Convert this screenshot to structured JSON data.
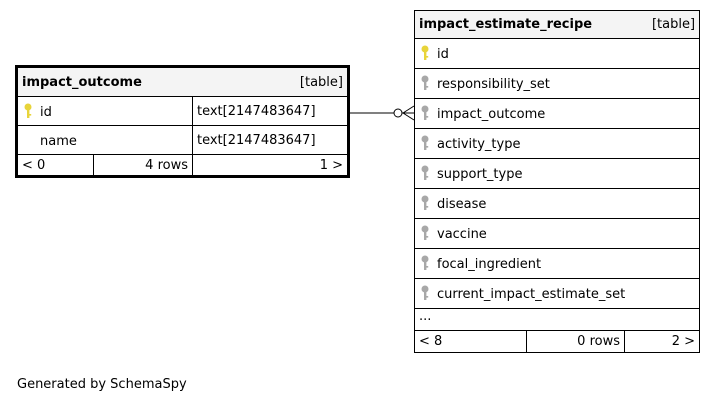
{
  "outcome_table": {
    "name": "impact_outcome",
    "kind": "[table]",
    "columns": [
      {
        "name": "id",
        "type": "text[2147483647]",
        "key": "primary"
      },
      {
        "name": "name",
        "type": "text[2147483647]",
        "key": "none"
      }
    ],
    "footer": {
      "parents": "< 0",
      "rows": "4 rows",
      "children": "1 >"
    }
  },
  "recipe_table": {
    "name": "impact_estimate_recipe",
    "kind": "[table]",
    "columns": [
      {
        "name": "id",
        "key": "primary"
      },
      {
        "name": "responsibility_set",
        "key": "foreign"
      },
      {
        "name": "impact_outcome",
        "key": "foreign"
      },
      {
        "name": "activity_type",
        "key": "foreign"
      },
      {
        "name": "support_type",
        "key": "foreign"
      },
      {
        "name": "disease",
        "key": "foreign"
      },
      {
        "name": "vaccine",
        "key": "foreign"
      },
      {
        "name": "focal_ingredient",
        "key": "foreign"
      },
      {
        "name": "current_impact_estimate_set",
        "key": "foreign"
      }
    ],
    "ellipsis": "...",
    "footer": {
      "parents": "< 8",
      "rows": "0 rows",
      "children": "2 >"
    }
  },
  "colors": {
    "primary_key": "#e8d43a",
    "foreign_key": "#a8a8a8"
  },
  "footer_text": "Generated by SchemaSpy"
}
